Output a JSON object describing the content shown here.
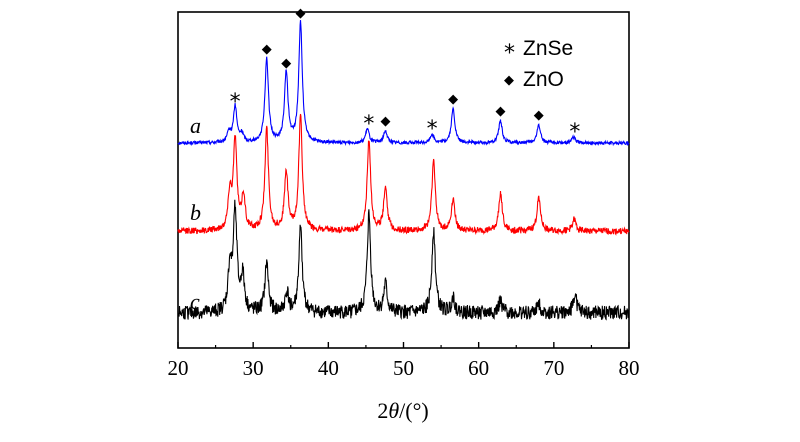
{
  "chart_data": {
    "type": "line",
    "title": "",
    "xlabel": "2θ/(°)",
    "xlabel_prefix": "2",
    "xlabel_var": "θ",
    "xlabel_unit": "/(°)",
    "ylabel": "",
    "xlim": [
      20,
      80
    ],
    "xticks": [
      20,
      30,
      40,
      50,
      60,
      70,
      80
    ],
    "grid": false,
    "legend": {
      "placement": "top-right",
      "entries": [
        {
          "symbol": "*",
          "label": "ZnSe"
        },
        {
          "symbol": "◆",
          "label": "ZnO"
        }
      ]
    },
    "series": [
      {
        "name": "a",
        "color": "#0000ff",
        "baseline": 0.35,
        "noise": 0.04,
        "peaks": [
          [
            26.8,
            0.25
          ],
          [
            27.6,
            0.9
          ],
          [
            28.5,
            0.2
          ],
          [
            31.8,
            2.1
          ],
          [
            34.4,
            1.75
          ],
          [
            36.3,
            3.0
          ],
          [
            45.2,
            0.35
          ],
          [
            47.6,
            0.3
          ],
          [
            53.8,
            0.22
          ],
          [
            56.6,
            0.85
          ],
          [
            62.9,
            0.55
          ],
          [
            68.0,
            0.45
          ],
          [
            72.6,
            0.15
          ]
        ]
      },
      {
        "name": "b",
        "color": "#ff0000",
        "baseline": 0.32,
        "noise": 0.08,
        "peaks": [
          [
            26.9,
            0.9
          ],
          [
            27.6,
            2.25
          ],
          [
            28.7,
            0.85
          ],
          [
            31.8,
            2.55
          ],
          [
            34.4,
            1.45
          ],
          [
            36.3,
            2.85
          ],
          [
            45.4,
            2.25
          ],
          [
            47.6,
            1.1
          ],
          [
            54.0,
            1.75
          ],
          [
            56.6,
            0.8
          ],
          [
            62.9,
            0.95
          ],
          [
            68.0,
            0.85
          ],
          [
            72.7,
            0.3
          ]
        ]
      },
      {
        "name": "c",
        "color": "#000000",
        "baseline": 0.5,
        "noise": 0.18,
        "peaks": [
          [
            26.9,
            1.1
          ],
          [
            27.6,
            2.6
          ],
          [
            28.6,
            0.9
          ],
          [
            31.8,
            1.25
          ],
          [
            34.5,
            0.5
          ],
          [
            36.3,
            2.1
          ],
          [
            45.4,
            2.45
          ],
          [
            47.6,
            0.7
          ],
          [
            54.0,
            2.1
          ],
          [
            56.6,
            0.4
          ],
          [
            62.9,
            0.3
          ],
          [
            68.0,
            0.25
          ],
          [
            72.8,
            0.45
          ]
        ]
      }
    ],
    "annotations": [
      {
        "symbol": "*",
        "label": "ZnSe",
        "x": 27.6
      },
      {
        "symbol": "◆",
        "label": "ZnO",
        "x": 31.8
      },
      {
        "symbol": "◆",
        "label": "ZnO",
        "x": 34.4
      },
      {
        "symbol": "◆",
        "label": "ZnO",
        "x": 36.3
      },
      {
        "symbol": "*",
        "label": "ZnSe",
        "x": 45.4
      },
      {
        "symbol": "◆",
        "label": "ZnO",
        "x": 47.6
      },
      {
        "symbol": "*",
        "label": "ZnSe",
        "x": 53.8
      },
      {
        "symbol": "◆",
        "label": "ZnO",
        "x": 56.6
      },
      {
        "symbol": "◆",
        "label": "ZnO",
        "x": 62.9
      },
      {
        "symbol": "◆",
        "label": "ZnO",
        "x": 68.0
      },
      {
        "symbol": "*",
        "label": "ZnSe",
        "x": 72.8
      }
    ]
  }
}
